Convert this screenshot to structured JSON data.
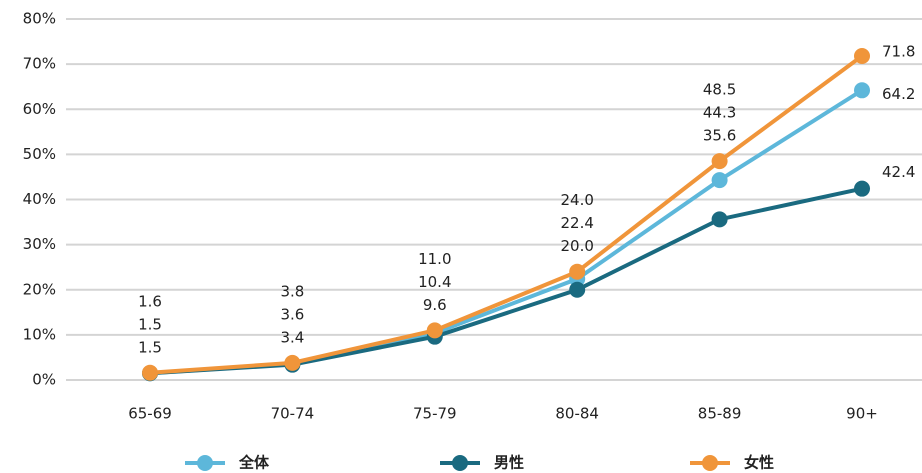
{
  "chart_data": {
    "type": "line",
    "categories": [
      "65-69",
      "70-74",
      "75-79",
      "80-84",
      "85-89",
      "90+"
    ],
    "series": [
      {
        "name": "全体",
        "color": "#5db7da",
        "values": [
          1.5,
          3.6,
          10.4,
          22.4,
          44.3,
          64.2
        ],
        "value_labels": [
          "1.5",
          "3.6",
          "10.4",
          "22.4",
          "44.3",
          "64.2"
        ]
      },
      {
        "name": "男性",
        "color": "#1a6a80",
        "values": [
          1.5,
          3.4,
          9.6,
          20.0,
          35.6,
          42.4
        ],
        "value_labels": [
          "1.5",
          "3.4",
          "9.6",
          "20.0",
          "35.6",
          "42.4"
        ]
      },
      {
        "name": "女性",
        "color": "#f0953a",
        "values": [
          1.6,
          3.8,
          11.0,
          24.0,
          48.5,
          71.8
        ],
        "value_labels": [
          "1.6",
          "3.8",
          "11.0",
          "24.0",
          "48.5",
          "71.8"
        ]
      }
    ],
    "ylim": [
      0,
      80
    ],
    "yticks": [
      {
        "value": 0,
        "label": "0%"
      },
      {
        "value": 10,
        "label": "10%"
      },
      {
        "value": 20,
        "label": "20%"
      },
      {
        "value": 30,
        "label": "30%"
      },
      {
        "value": 40,
        "label": "40%"
      },
      {
        "value": 50,
        "label": "50%"
      },
      {
        "value": 60,
        "label": "60%"
      },
      {
        "value": 70,
        "label": "70%"
      },
      {
        "value": 80,
        "label": "80%"
      }
    ],
    "grid": true
  }
}
